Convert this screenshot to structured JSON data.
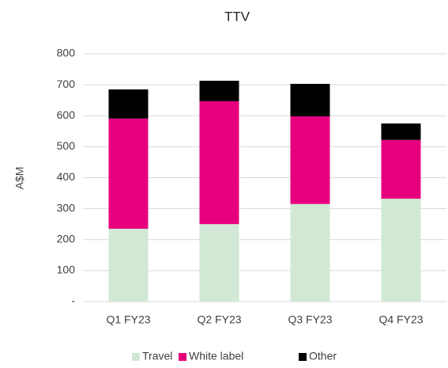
{
  "chart_data": {
    "type": "stacked_bar",
    "title": "TTV",
    "y_label": "A$M",
    "categories": [
      "Q1 FY23",
      "Q2 FY23",
      "Q3 FY23",
      "Q4 FY23"
    ],
    "series": [
      {
        "name": "Travel",
        "color": "#d0e8d4",
        "values": [
          235,
          250,
          315,
          332
        ]
      },
      {
        "name": "White label",
        "color": "#e6007e",
        "values": [
          356,
          397,
          283,
          190
        ]
      },
      {
        "name": "Other",
        "color": "#000000",
        "values": [
          94,
          66,
          105,
          53
        ]
      }
    ],
    "ylim": [
      0,
      800
    ],
    "yticks": [
      {
        "value": 0,
        "label": "-"
      },
      100,
      200,
      300,
      400,
      500,
      600,
      700,
      800
    ],
    "grid": true,
    "legend": "bottom"
  }
}
